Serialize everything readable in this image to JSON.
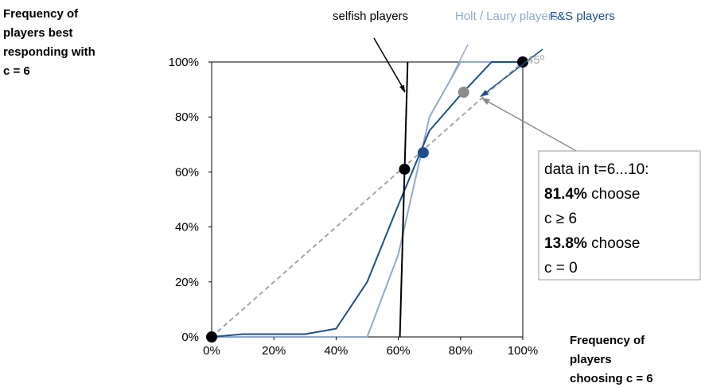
{
  "chart_data": {
    "type": "line",
    "ylabel": [
      "Frequency of",
      "players best",
      "responding with",
      "c = 6"
    ],
    "xlabel": [
      "Frequency of",
      "players",
      "choosing c = 6"
    ],
    "xlim": [
      0,
      100
    ],
    "ylim": [
      0,
      100
    ],
    "xticks": [
      {
        "value": 0,
        "label": "0%"
      },
      {
        "value": 20,
        "label": "20%"
      },
      {
        "value": 40,
        "label": "40%"
      },
      {
        "value": 60,
        "label": "60%"
      },
      {
        "value": 80,
        "label": "80%"
      },
      {
        "value": 100,
        "label": "100%"
      }
    ],
    "yticks": [
      {
        "value": 0,
        "label": "0%"
      },
      {
        "value": 20,
        "label": "20%"
      },
      {
        "value": 40,
        "label": "40%"
      },
      {
        "value": 60,
        "label": "60%"
      },
      {
        "value": 80,
        "label": "80%"
      },
      {
        "value": 100,
        "label": "100%"
      }
    ],
    "series": [
      {
        "name": "45º",
        "color": "#a6a6a6",
        "dashed": true,
        "x": [
          0,
          100
        ],
        "values": [
          0,
          100
        ]
      },
      {
        "name": "Holt / Laury players",
        "color": "#8eaacc",
        "x": [
          0,
          50,
          60,
          70,
          80,
          90,
          100
        ],
        "values": [
          0,
          0,
          30,
          80,
          100,
          100,
          100
        ]
      },
      {
        "name": "F&S players",
        "color": "#1b4f8c",
        "x": [
          0,
          10,
          20,
          30,
          40,
          50,
          60,
          70,
          80,
          90,
          100
        ],
        "values": [
          0,
          1,
          1,
          1,
          3,
          20,
          48,
          75,
          88,
          100,
          100
        ]
      },
      {
        "name": "selfish players",
        "color": "#000000",
        "x": [
          60.5,
          63
        ],
        "values": [
          0,
          100
        ]
      }
    ],
    "points": {
      "x": [
        0,
        62,
        68,
        81,
        100
      ],
      "values": [
        0,
        61,
        67,
        89,
        100
      ],
      "colors": [
        "#000000",
        "#000000",
        "#1b4f8c",
        "#8c8c8c",
        "#000000"
      ]
    },
    "note": {
      "line1": "data in t=6...10:",
      "pct1": "81.4%",
      "word1": "choose",
      "line3": "c ≥ 6",
      "pct2": "13.8%",
      "word2": "choose",
      "line5": "c = 0"
    }
  }
}
